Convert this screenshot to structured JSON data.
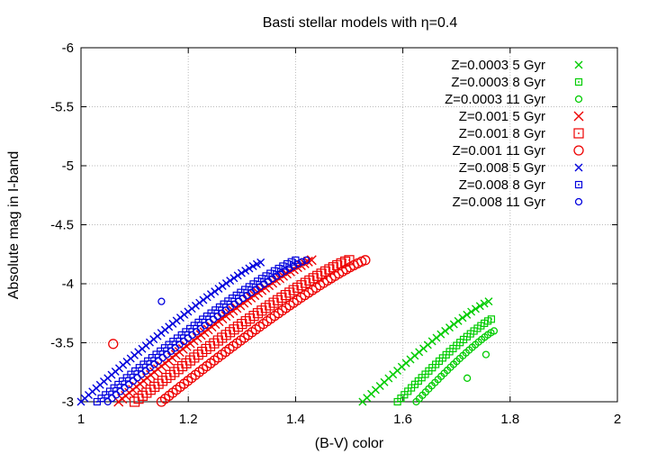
{
  "chart_data": {
    "type": "scatter",
    "title": "Basti stellar models with η=0.4",
    "xlabel": "(B-V) color",
    "ylabel": "Absolute mag in I-band",
    "xlim": [
      1,
      2
    ],
    "ylim": [
      -3,
      -6
    ],
    "y_reversed": true,
    "grid": true,
    "legend_position": "top-right",
    "x_ticks": [
      {
        "value": 1,
        "label": "1"
      },
      {
        "value": 1.2,
        "label": "1.2"
      },
      {
        "value": 1.4,
        "label": "1.4"
      },
      {
        "value": 1.6,
        "label": "1.6"
      },
      {
        "value": 1.8,
        "label": "1.8"
      },
      {
        "value": 2,
        "label": "2"
      }
    ],
    "y_ticks": [
      {
        "value": -3,
        "label": "-3"
      },
      {
        "value": -3.5,
        "label": "-3.5"
      },
      {
        "value": -4,
        "label": "-4"
      },
      {
        "value": -4.5,
        "label": "-4.5"
      },
      {
        "value": -5,
        "label": "-5"
      },
      {
        "value": -5.5,
        "label": "-5.5"
      },
      {
        "value": -6,
        "label": "-6"
      }
    ],
    "series": [
      {
        "name": "Z=0.0003 5 Gyr",
        "color": "#00cc00",
        "marker": "x",
        "size": 4,
        "segments": [
          {
            "x0": 1.525,
            "y0": -3.0,
            "x1": 1.76,
            "y1": -3.85,
            "n": 30
          }
        ],
        "extra": []
      },
      {
        "name": "Z=0.0003 8 Gyr",
        "color": "#00cc00",
        "marker": "square",
        "size": 3.5,
        "segments": [
          {
            "x0": 1.59,
            "y0": -3.0,
            "x1": 1.765,
            "y1": -3.7,
            "n": 28
          }
        ],
        "extra": []
      },
      {
        "name": "Z=0.0003 11 Gyr",
        "color": "#00cc00",
        "marker": "circle",
        "size": 3.5,
        "segments": [
          {
            "x0": 1.625,
            "y0": -3.0,
            "x1": 1.77,
            "y1": -3.6,
            "n": 26
          }
        ],
        "extra": [
          [
            1.72,
            -3.2
          ],
          [
            1.755,
            -3.4
          ]
        ]
      },
      {
        "name": "Z=0.001 5 Gyr",
        "color": "#ee0000",
        "marker": "x",
        "size": 5,
        "segments": [
          {
            "x0": 1.07,
            "y0": -3.0,
            "x1": 1.43,
            "y1": -4.2,
            "n": 55
          }
        ],
        "extra": []
      },
      {
        "name": "Z=0.001 8 Gyr",
        "color": "#ee0000",
        "marker": "square",
        "size": 5,
        "segments": [
          {
            "x0": 1.1,
            "y0": -3.0,
            "x1": 1.5,
            "y1": -4.2,
            "n": 55
          }
        ],
        "extra": []
      },
      {
        "name": "Z=0.001 11 Gyr",
        "color": "#ee0000",
        "marker": "circle",
        "size": 5,
        "segments": [
          {
            "x0": 1.15,
            "y0": -3.0,
            "x1": 1.53,
            "y1": -4.2,
            "n": 55
          }
        ],
        "extra": [
          [
            1.06,
            -3.49
          ]
        ]
      },
      {
        "name": "Z=0.008 5 Gyr",
        "color": "#0000dd",
        "marker": "x",
        "size": 4,
        "segments": [
          {
            "x0": 1.0,
            "y0": -3.0,
            "x1": 1.335,
            "y1": -4.18,
            "n": 48
          }
        ],
        "extra": []
      },
      {
        "name": "Z=0.008 8 Gyr",
        "color": "#0000dd",
        "marker": "square",
        "size": 3.5,
        "segments": [
          {
            "x0": 1.03,
            "y0": -3.0,
            "x1": 1.4,
            "y1": -4.2,
            "n": 48
          }
        ],
        "extra": []
      },
      {
        "name": "Z=0.008 11 Gyr",
        "color": "#0000dd",
        "marker": "circle",
        "size": 3.5,
        "segments": [
          {
            "x0": 1.05,
            "y0": -3.0,
            "x1": 1.42,
            "y1": -4.2,
            "n": 48
          }
        ],
        "extra": [
          [
            1.15,
            -3.85
          ]
        ]
      }
    ]
  }
}
